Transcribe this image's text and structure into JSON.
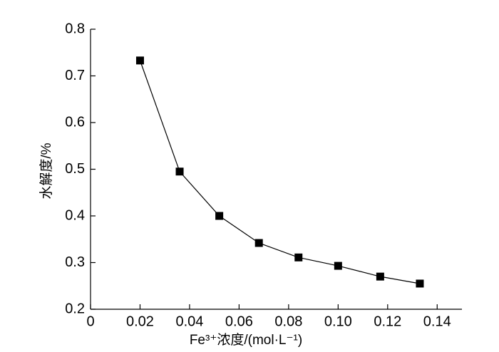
{
  "chart_data": {
    "type": "line",
    "x_label": "Fe³⁺浓度/(mol·L⁻¹)",
    "y_label": "水解度/%",
    "series": [
      {
        "color": "#000000",
        "x": [
          0.02,
          0.036,
          0.052,
          0.068,
          0.084,
          0.1,
          0.117,
          0.133
        ],
        "values": [
          0.733,
          0.495,
          0.4,
          0.342,
          0.311,
          0.293,
          0.27,
          0.255
        ]
      }
    ],
    "xlim": [
      0,
      0.15
    ],
    "xticks": [
      0,
      0.02,
      0.04,
      0.06,
      0.08,
      {
        "value": 0.1,
        "label": "0.10"
      },
      0.12,
      0.14
    ],
    "ylim": [
      0.2,
      0.8
    ],
    "yticks": [
      0.2,
      0.3,
      0.4,
      0.5,
      0.6,
      0.7,
      0.8
    ]
  }
}
